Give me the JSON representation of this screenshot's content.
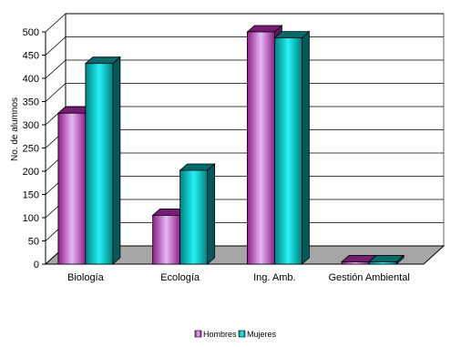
{
  "chart_data": {
    "type": "bar",
    "style": "3d-clustered-column",
    "categories": [
      "Biología",
      "Ecología",
      "Ing. Amb.",
      "Gestión Ambiental"
    ],
    "series": [
      {
        "name": "Hombres",
        "values": [
          325,
          105,
          500,
          5
        ],
        "color": "#8e1e8a",
        "highlight": "#e8b8f4"
      },
      {
        "name": "Mujeres",
        "values": [
          432,
          202,
          487,
          5
        ],
        "color": "#008080",
        "highlight": "#22f4f4"
      }
    ],
    "ylabel": "No. de alumnos",
    "xlabel": "",
    "title": "",
    "ylim": [
      0,
      500
    ],
    "yticks": [
      0,
      50,
      100,
      150,
      200,
      250,
      300,
      350,
      400,
      450,
      500
    ],
    "grid": true,
    "legend_position": "bottom",
    "floor_color": "#a6a6a6"
  }
}
